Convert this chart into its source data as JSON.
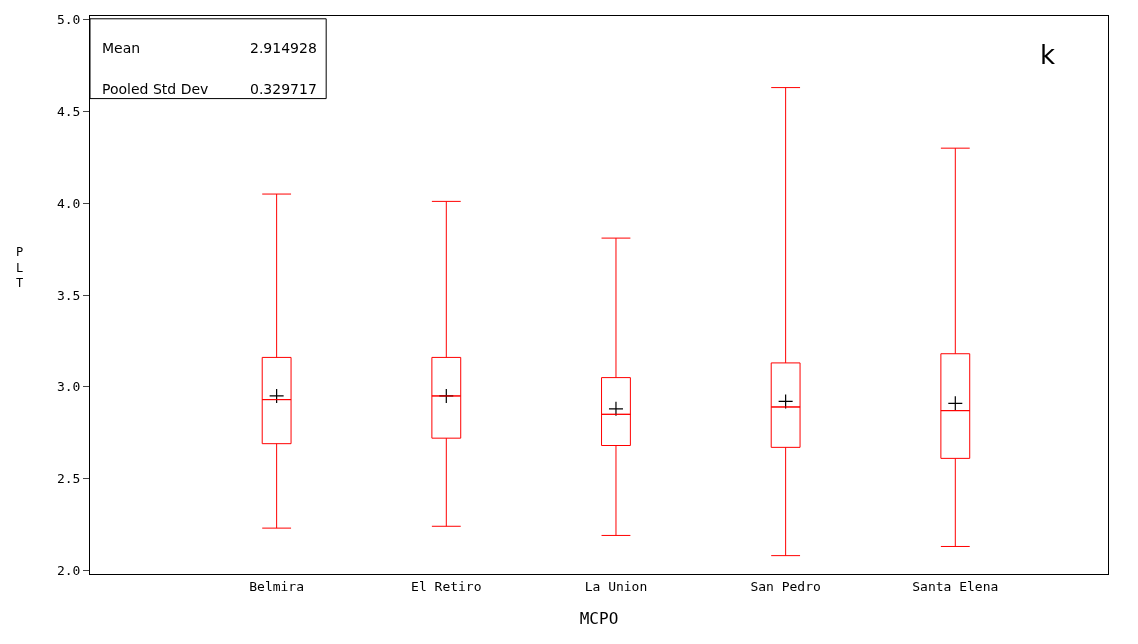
{
  "chart_data": {
    "type": "box",
    "xlabel": "MCPO",
    "ylabel": "PLT",
    "categories": [
      "Belmira",
      "El Retiro",
      "La Union",
      "San Pedro",
      "Santa Elena"
    ],
    "color": "#ff0000",
    "marker": "cross",
    "ylim": [
      1.98,
      5.02
    ],
    "yticks": [
      {
        "value": 2.0,
        "label": "2.0"
      },
      {
        "value": 2.5,
        "label": "2.5"
      },
      {
        "value": 3.0,
        "label": "3.0"
      },
      {
        "value": 3.5,
        "label": "3.5"
      },
      {
        "value": 4.0,
        "label": "4.0"
      },
      {
        "value": 4.5,
        "label": "4.5"
      },
      {
        "value": 5.0,
        "label": "5.0"
      }
    ],
    "boxes": [
      {
        "low": 2.23,
        "q1": 2.69,
        "median": 2.93,
        "q3": 3.16,
        "high": 4.05,
        "mean": 2.95
      },
      {
        "low": 2.24,
        "q1": 2.72,
        "median": 2.95,
        "q3": 3.16,
        "high": 4.01,
        "mean": 2.95
      },
      {
        "low": 2.19,
        "q1": 2.68,
        "median": 2.85,
        "q3": 3.05,
        "high": 3.81,
        "mean": 2.88
      },
      {
        "low": 2.08,
        "q1": 2.67,
        "median": 2.89,
        "q3": 3.13,
        "high": 4.63,
        "mean": 2.92
      },
      {
        "low": 2.13,
        "q1": 2.61,
        "median": 2.87,
        "q3": 3.18,
        "high": 4.3,
        "mean": 2.91
      }
    ],
    "annotations": [
      "Mean",
      "2.914928",
      "Pooled Std Dev",
      "0.329717",
      "k"
    ]
  }
}
